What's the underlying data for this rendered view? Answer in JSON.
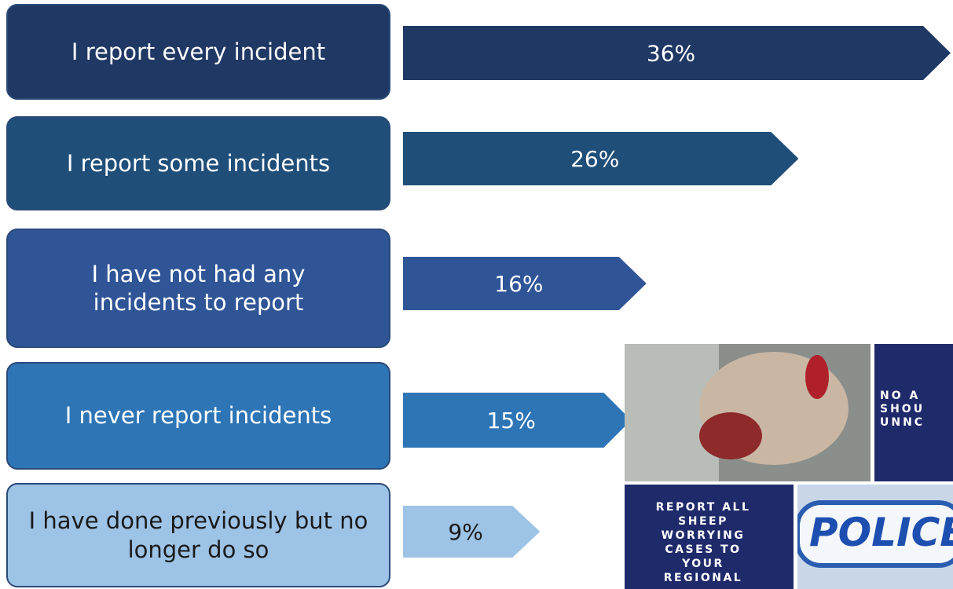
{
  "chart_data": {
    "type": "bar",
    "orientation": "horizontal",
    "categories": [
      "I report every incident",
      "I report some incidents",
      "I have not had any incidents to report",
      "I never report incidents",
      "I have done previously but no longer do so"
    ],
    "values": [
      36,
      26,
      16,
      15,
      9
    ],
    "value_labels": [
      "36%",
      "26%",
      "16%",
      "15%",
      "9%"
    ],
    "colors": [
      "#203864",
      "#1f4e79",
      "#2f5597",
      "#2e75b6",
      "#9dc3e6"
    ],
    "xlim": [
      0,
      36
    ]
  },
  "poster": {
    "top_right_lines": [
      "NO A",
      "SHOU",
      "UNNC"
    ],
    "bottom_left_lines": [
      "REPORT ALL",
      "SHEEP",
      "WORRYING",
      "CASES TO",
      "YOUR",
      "REGIONAL"
    ],
    "police_sign": "POLICE"
  }
}
